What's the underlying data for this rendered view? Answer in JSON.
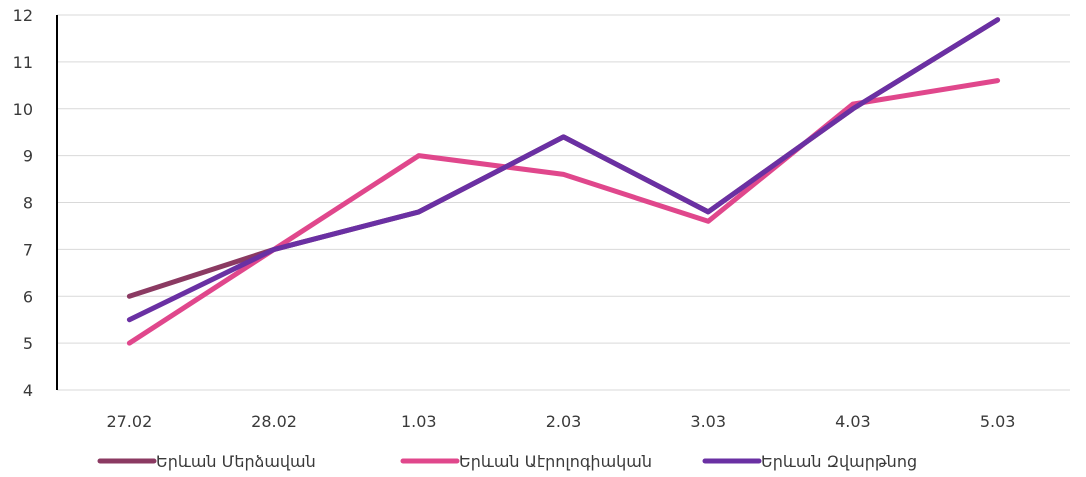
{
  "chart_data": {
    "type": "line",
    "categories": [
      "27.02",
      "28.02",
      "1.03",
      "2.03",
      "3.03",
      "4.03",
      "5.03"
    ],
    "series": [
      {
        "name": "Երևան Մերձավան",
        "color": "#8b3a62",
        "values": [
          6,
          7,
          7.8,
          9.4,
          7.8,
          10,
          11.9
        ]
      },
      {
        "name": "Երևան Աէրոլոգիական",
        "color": "#e0478c",
        "values": [
          5,
          7,
          9,
          8.6,
          7.6,
          10.1,
          10.6
        ]
      },
      {
        "name": "Երևան Զվարթնոց",
        "color": "#6a30a3",
        "values": [
          5.5,
          7,
          7.8,
          9.4,
          7.8,
          10,
          11.9
        ]
      }
    ],
    "yticks": [
      "4",
      "5",
      "6",
      "7",
      "8",
      "9",
      "10",
      "11",
      "12"
    ],
    "ylim": [
      4,
      12
    ],
    "grid": true,
    "legend_position": "bottom",
    "title": "",
    "xlabel": "",
    "ylabel": ""
  }
}
